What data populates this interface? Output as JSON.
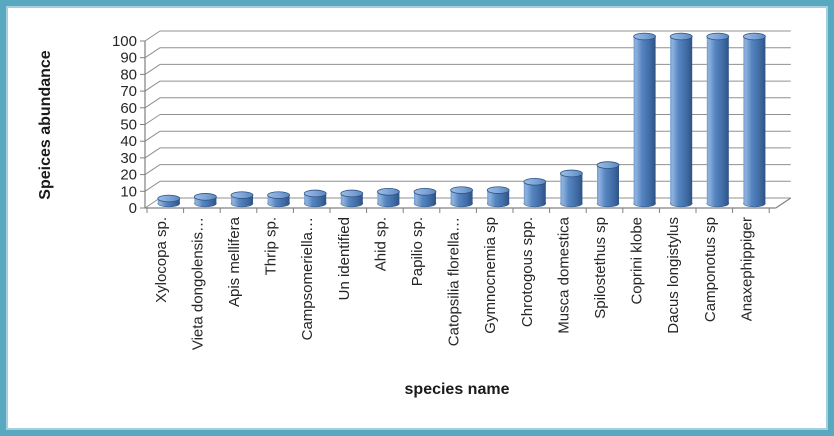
{
  "frame": {
    "border_color": "#58A9BF",
    "inner_line_color": "#A5CFDC",
    "background": "#FFFFFF"
  },
  "chart_data": {
    "type": "bar",
    "style": "3d-cylinder",
    "title": "",
    "xlabel": "species name",
    "ylabel": "Speices abundance",
    "categories": [
      "Xylocopa sp.",
      "Vieta dongolensis…",
      "Apis mellifera",
      "Thrip sp.",
      "Campsomeriella…",
      "Un identified",
      "Ahid sp.",
      "Papilio sp.",
      "Catopsilia florella…",
      "Gymnocnemia sp",
      "Chrotogous spp.",
      "Musca domestica",
      "Spilostethus sp",
      "Coprini klobe",
      "Dacus longistylus",
      "Camponotus sp",
      "Anaxephippiger"
    ],
    "values": [
      3,
      4,
      5,
      5,
      6,
      6,
      7,
      7,
      8,
      8,
      13,
      18,
      23,
      100,
      100,
      100,
      100
    ],
    "ylim": [
      0,
      100
    ],
    "ytick_step": 10,
    "yticks": [
      0,
      10,
      20,
      30,
      40,
      50,
      60,
      70,
      80,
      90,
      100
    ],
    "grid": true,
    "legend": false,
    "bar_color": "#4F81BD",
    "bar_edge_color": "#2E5385",
    "bar_highlight_color": "#8FB2DE",
    "gridline_color": "#909090",
    "axis_color": "#808080",
    "text_color": "#262626"
  }
}
